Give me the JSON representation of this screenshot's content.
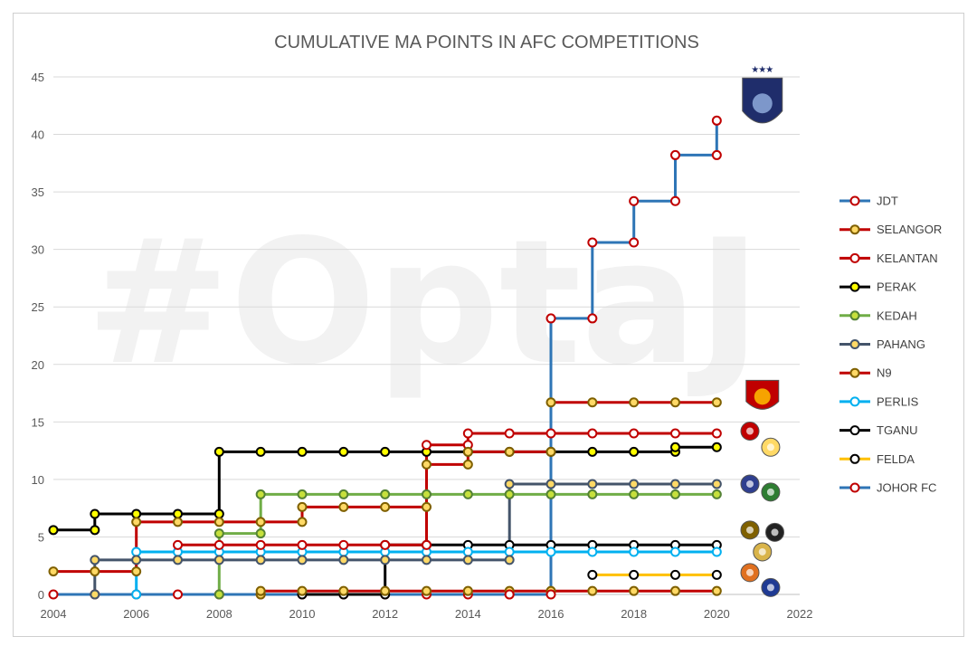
{
  "chart_data": {
    "type": "line",
    "step": true,
    "title": "CUMULATIVE MA POINTS IN AFC COMPETITIONS",
    "watermark": "#OptaJ",
    "xlabel": "",
    "ylabel": "",
    "xlim": [
      2004,
      2022
    ],
    "ylim": [
      0,
      45
    ],
    "x_ticks": [
      2004,
      2006,
      2008,
      2010,
      2012,
      2014,
      2016,
      2018,
      2020,
      2022
    ],
    "y_ticks": [
      0,
      5,
      10,
      15,
      20,
      25,
      30,
      35,
      40,
      45
    ],
    "grid": "horizontal",
    "legend_position": "right",
    "series": [
      {
        "name": "JDT",
        "line_color": "#2e75b6",
        "marker_color": "#ffffff",
        "marker_edge": "#c00000",
        "points": [
          [
            2015,
            0
          ],
          [
            2016,
            0
          ],
          [
            2016,
            24
          ],
          [
            2017,
            24
          ],
          [
            2017,
            30.6
          ],
          [
            2018,
            30.6
          ],
          [
            2018,
            34.2
          ],
          [
            2019,
            34.2
          ],
          [
            2019,
            38.2
          ],
          [
            2020,
            38.2
          ],
          [
            2020,
            41.2
          ]
        ]
      },
      {
        "name": "SELANGOR",
        "line_color": "#c00000",
        "marker_color": "#ffd966",
        "marker_edge": "#7f6000",
        "points": [
          [
            2004,
            2
          ],
          [
            2005,
            2
          ],
          [
            2006,
            2
          ],
          [
            2006,
            6.3
          ],
          [
            2007,
            6.3
          ],
          [
            2008,
            6.3
          ],
          [
            2009,
            6.3
          ],
          [
            2010,
            6.3
          ],
          [
            2010,
            7.6
          ],
          [
            2011,
            7.6
          ],
          [
            2012,
            7.6
          ],
          [
            2013,
            7.6
          ],
          [
            2013,
            11.3
          ],
          [
            2014,
            11.3
          ],
          [
            2014,
            12.4
          ],
          [
            2015,
            12.4
          ],
          [
            2016,
            12.4
          ],
          [
            2016,
            16.7
          ],
          [
            2017,
            16.7
          ],
          [
            2018,
            16.7
          ],
          [
            2019,
            16.7
          ],
          [
            2020,
            16.7
          ]
        ]
      },
      {
        "name": "KELANTAN",
        "line_color": "#c00000",
        "marker_color": "#ffffff",
        "marker_edge": "#c00000",
        "points": [
          [
            2007,
            4.3
          ],
          [
            2008,
            4.3
          ],
          [
            2009,
            4.3
          ],
          [
            2010,
            4.3
          ],
          [
            2011,
            4.3
          ],
          [
            2012,
            4.3
          ],
          [
            2013,
            4.3
          ],
          [
            2013,
            13
          ],
          [
            2014,
            13
          ],
          [
            2014,
            14
          ],
          [
            2015,
            14
          ],
          [
            2016,
            14
          ],
          [
            2017,
            14
          ],
          [
            2018,
            14
          ],
          [
            2019,
            14
          ],
          [
            2020,
            14
          ]
        ]
      },
      {
        "name": "PERAK",
        "line_color": "#000000",
        "marker_color": "#ffff00",
        "marker_edge": "#000000",
        "points": [
          [
            2004,
            5.6
          ],
          [
            2005,
            5.6
          ],
          [
            2005,
            7
          ],
          [
            2006,
            7
          ],
          [
            2007,
            7
          ],
          [
            2008,
            7
          ],
          [
            2008,
            12.4
          ],
          [
            2009,
            12.4
          ],
          [
            2010,
            12.4
          ],
          [
            2011,
            12.4
          ],
          [
            2012,
            12.4
          ],
          [
            2013,
            12.4
          ],
          [
            2014,
            12.4
          ],
          [
            2015,
            12.4
          ],
          [
            2016,
            12.4
          ],
          [
            2017,
            12.4
          ],
          [
            2018,
            12.4
          ],
          [
            2019,
            12.4
          ],
          [
            2019,
            12.8
          ],
          [
            2020,
            12.8
          ]
        ]
      },
      {
        "name": "KEDAH",
        "line_color": "#70ad47",
        "marker_color": "#c6e03c",
        "marker_edge": "#548235",
        "points": [
          [
            2008,
            0
          ],
          [
            2008,
            5.3
          ],
          [
            2009,
            5.3
          ],
          [
            2009,
            8.7
          ],
          [
            2010,
            8.7
          ],
          [
            2011,
            8.7
          ],
          [
            2012,
            8.7
          ],
          [
            2013,
            8.7
          ],
          [
            2014,
            8.7
          ],
          [
            2015,
            8.7
          ],
          [
            2016,
            8.7
          ],
          [
            2017,
            8.7
          ],
          [
            2018,
            8.7
          ],
          [
            2019,
            8.7
          ],
          [
            2020,
            8.7
          ]
        ]
      },
      {
        "name": "PAHANG",
        "line_color": "#44546a",
        "marker_color": "#ffd966",
        "marker_edge": "#44546a",
        "points": [
          [
            2005,
            0
          ],
          [
            2005,
            3
          ],
          [
            2006,
            3
          ],
          [
            2007,
            3
          ],
          [
            2008,
            3
          ],
          [
            2009,
            3
          ],
          [
            2010,
            3
          ],
          [
            2011,
            3
          ],
          [
            2012,
            3
          ],
          [
            2013,
            3
          ],
          [
            2014,
            3
          ],
          [
            2015,
            3
          ],
          [
            2015,
            9.6
          ],
          [
            2016,
            9.6
          ],
          [
            2017,
            9.6
          ],
          [
            2018,
            9.6
          ],
          [
            2019,
            9.6
          ],
          [
            2020,
            9.6
          ]
        ]
      },
      {
        "name": "N9",
        "line_color": "#c00000",
        "marker_color": "#ffd966",
        "marker_edge": "#7f6000",
        "points": [
          [
            2009,
            0
          ],
          [
            2009,
            0.3
          ],
          [
            2010,
            0.3
          ],
          [
            2011,
            0.3
          ],
          [
            2012,
            0.3
          ],
          [
            2013,
            0.3
          ],
          [
            2014,
            0.3
          ],
          [
            2015,
            0.3
          ],
          [
            2016,
            0.3
          ],
          [
            2017,
            0.3
          ],
          [
            2018,
            0.3
          ],
          [
            2019,
            0.3
          ],
          [
            2020,
            0.3
          ]
        ]
      },
      {
        "name": "PERLIS",
        "line_color": "#00b0f0",
        "marker_color": "#ffffff",
        "marker_edge": "#00b0f0",
        "points": [
          [
            2006,
            0
          ],
          [
            2006,
            3.7
          ],
          [
            2007,
            3.7
          ],
          [
            2008,
            3.7
          ],
          [
            2009,
            3.7
          ],
          [
            2010,
            3.7
          ],
          [
            2011,
            3.7
          ],
          [
            2012,
            3.7
          ],
          [
            2013,
            3.7
          ],
          [
            2014,
            3.7
          ],
          [
            2015,
            3.7
          ],
          [
            2016,
            3.7
          ],
          [
            2017,
            3.7
          ],
          [
            2018,
            3.7
          ],
          [
            2019,
            3.7
          ],
          [
            2020,
            3.7
          ]
        ]
      },
      {
        "name": "TGANU",
        "line_color": "#000000",
        "marker_color": "#ffffff",
        "marker_edge": "#000000",
        "points": [
          [
            2010,
            0
          ],
          [
            2011,
            0
          ],
          [
            2012,
            0
          ],
          [
            2012,
            4.3
          ],
          [
            2013,
            4.3
          ],
          [
            2014,
            4.3
          ],
          [
            2015,
            4.3
          ],
          [
            2016,
            4.3
          ],
          [
            2017,
            4.3
          ],
          [
            2018,
            4.3
          ],
          [
            2019,
            4.3
          ],
          [
            2020,
            4.3
          ]
        ]
      },
      {
        "name": "FELDA",
        "line_color": "#ffc000",
        "marker_color": "#ffffff",
        "marker_edge": "#000000",
        "points": [
          [
            2017,
            1.7
          ],
          [
            2018,
            1.7
          ],
          [
            2019,
            1.7
          ],
          [
            2020,
            1.7
          ]
        ]
      },
      {
        "name": "JOHOR FC",
        "line_color": "#2e75b6",
        "marker_color": "#ffffff",
        "marker_edge": "#c00000",
        "points": [
          [
            2004,
            0
          ],
          [
            2005,
            0
          ],
          [
            2006,
            0
          ],
          [
            2007,
            0
          ],
          [
            2008,
            0
          ],
          [
            2009,
            0
          ],
          [
            2010,
            0
          ],
          [
            2011,
            0
          ],
          [
            2012,
            0
          ],
          [
            2013,
            0
          ],
          [
            2014,
            0
          ],
          [
            2015,
            0
          ]
        ]
      }
    ],
    "logos": [
      {
        "club": "JDT",
        "icon": "shield-crest-icon",
        "x": 2021.1,
        "y": 42.7,
        "color": "#1f2d6b"
      },
      {
        "club": "SELANGOR",
        "icon": "shield-crest-icon",
        "x": 2021.1,
        "y": 17.2,
        "color": "#c00000"
      },
      {
        "club": "KELANTAN",
        "icon": "crest-icon",
        "x": 2020.8,
        "y": 14.2,
        "color": "#c00000"
      },
      {
        "club": "PERAK",
        "icon": "crest-icon",
        "x": 2021.3,
        "y": 12.8,
        "color": "#ffd966"
      },
      {
        "club": "PAHANG",
        "icon": "crest-icon",
        "x": 2020.8,
        "y": 9.6,
        "color": "#2f3f8f"
      },
      {
        "club": "KEDAH",
        "icon": "crest-icon",
        "x": 2021.3,
        "y": 8.9,
        "color": "#2e7d32"
      },
      {
        "club": "N9",
        "icon": "crest-icon",
        "x": 2020.8,
        "y": 5.6,
        "color": "#7f6000"
      },
      {
        "club": "TGANU",
        "icon": "crest-icon",
        "x": 2021.4,
        "y": 5.4,
        "color": "#222222"
      },
      {
        "club": "PERLIS",
        "icon": "crest-icon",
        "x": 2021.1,
        "y": 3.7,
        "color": "#d9b44a"
      },
      {
        "club": "FELDA",
        "icon": "crest-icon",
        "x": 2020.8,
        "y": 1.9,
        "color": "#e07020"
      },
      {
        "club": "JOHOR FC",
        "icon": "crest-icon",
        "x": 2021.3,
        "y": 0.6,
        "color": "#1f3a93"
      }
    ]
  }
}
